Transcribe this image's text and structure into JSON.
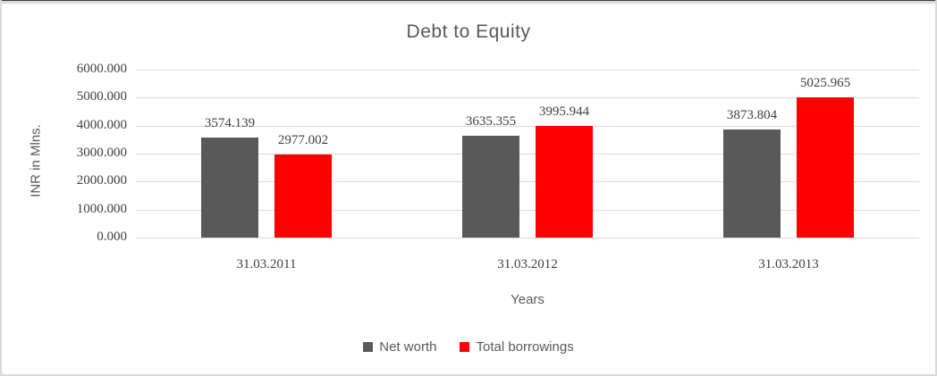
{
  "chart_data": {
    "type": "bar",
    "title": "Debt to Equity",
    "xlabel": "Years",
    "ylabel": "INR in Mlns.",
    "categories": [
      "31.03.2011",
      "31.03.2012",
      "31.03.2013"
    ],
    "series": [
      {
        "name": "Net worth",
        "color": "#595959",
        "values": [
          3574.139,
          3635.355,
          3873.804
        ]
      },
      {
        "name": "Total borrowings",
        "color": "#ff0000",
        "values": [
          2977.002,
          3995.944,
          5025.965
        ]
      }
    ],
    "ylim": [
      0,
      6000
    ],
    "ytick_step": 1000,
    "ytick_labels": [
      "0.000",
      "1000.000",
      "2000.000",
      "3000.000",
      "4000.000",
      "5000.000",
      "6000.000"
    ],
    "value_format_decimals": 3,
    "grid": true,
    "data_labels": true,
    "legend_position": "bottom"
  },
  "colors": {
    "gridline": "#d9d9d9",
    "axis_text": "#404040",
    "chart_text": "#595959",
    "frame_border": "#d9d9d9"
  }
}
